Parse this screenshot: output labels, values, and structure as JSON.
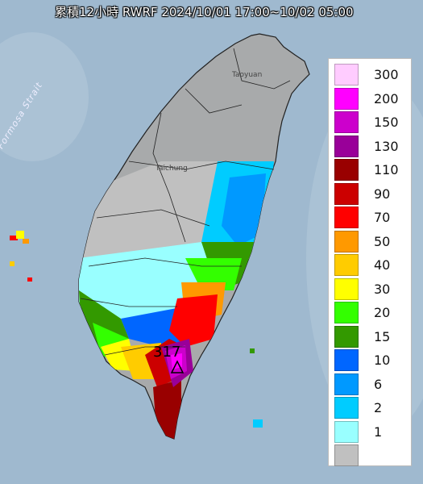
{
  "title": "累積12小時 RWRF 2024/10/01 17:00~10/02 05:00",
  "map": {
    "labels": {
      "taoyuan": "Taoyuan",
      "taichung": "Taichung",
      "strait": "Formosa Strait"
    },
    "max_value_label": "317",
    "land_color": "#a8aaab",
    "sea_color": "#9fb9cf",
    "no_rain_color": "#c0c0c0"
  },
  "legend": {
    "items": [
      {
        "label": "300",
        "color": "#ffccff"
      },
      {
        "label": "200",
        "color": "#ff00ff"
      },
      {
        "label": "150",
        "color": "#cc00cc"
      },
      {
        "label": "130",
        "color": "#990099"
      },
      {
        "label": "110",
        "color": "#990000"
      },
      {
        "label": "90",
        "color": "#cc0000"
      },
      {
        "label": "70",
        "color": "#ff0000"
      },
      {
        "label": "50",
        "color": "#ff9900"
      },
      {
        "label": "40",
        "color": "#ffcc00"
      },
      {
        "label": "30",
        "color": "#ffff00"
      },
      {
        "label": "20",
        "color": "#33ff00"
      },
      {
        "label": "15",
        "color": "#339900"
      },
      {
        "label": "10",
        "color": "#0066ff"
      },
      {
        "label": "6",
        "color": "#0099ff"
      },
      {
        "label": "2",
        "color": "#00ccff"
      },
      {
        "label": "1",
        "color": "#99ffff"
      },
      {
        "label": "",
        "color": "#c0c0c0"
      }
    ]
  }
}
